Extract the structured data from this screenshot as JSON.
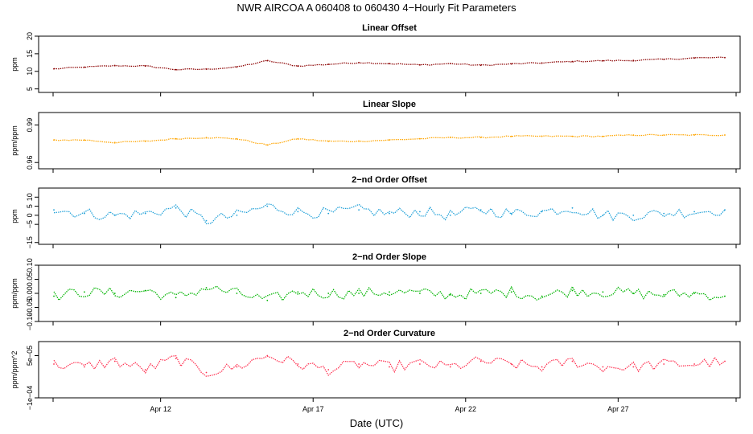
{
  "figure": {
    "title": "NWR   AIRCOA A   060408 to 060430   4−Hourly Fit Parameters",
    "xlabel": "Date (UTC)"
  },
  "chart_data": [
    {
      "type": "line",
      "title": "Linear Offset",
      "ylabel": "ppm",
      "ylim": [
        4,
        20
      ],
      "yticks": [
        5,
        10,
        15,
        20
      ],
      "ytick_labels": [
        "5",
        "10",
        "15",
        "20"
      ],
      "xlim": [
        "2006-04-08T00:00Z",
        "2006-05-01T00:00Z"
      ],
      "xticks": [
        "Apr 12",
        "Apr 17",
        "Apr 22",
        "Apr 27"
      ],
      "color": "#8b0000",
      "series": [
        {
          "x": [
            "2006-04-08T12Z",
            "2006-04-09T12Z",
            "2006-04-10T12Z",
            "2006-04-11T12Z",
            "2006-04-12T12Z",
            "2006-04-13T12Z",
            "2006-04-14T12Z",
            "2006-04-15T12Z",
            "2006-04-16T12Z",
            "2006-04-17T12Z",
            "2006-04-18T12Z",
            "2006-04-19T12Z",
            "2006-04-20T12Z",
            "2006-04-21T12Z",
            "2006-04-22T12Z",
            "2006-04-23T12Z",
            "2006-04-24T12Z",
            "2006-04-25T12Z",
            "2006-04-26T12Z",
            "2006-04-27T12Z",
            "2006-04-28T12Z",
            "2006-04-29T12Z",
            "2006-04-30T12Z"
          ],
          "values": [
            10.7,
            11.2,
            11.6,
            11.5,
            10.5,
            10.6,
            11.2,
            13.0,
            11.5,
            12.0,
            12.5,
            12.2,
            11.8,
            12.2,
            11.7,
            12.1,
            12.4,
            12.8,
            13.0,
            13.1,
            13.4,
            13.8,
            13.9
          ]
        }
      ]
    },
    {
      "type": "line",
      "title": "Linear Slope",
      "ylabel": "ppm/ppm",
      "ylim": [
        0.955,
        1.0
      ],
      "yticks": [
        0.96,
        0.99
      ],
      "ytick_labels": [
        "0.96",
        "0.99"
      ],
      "xlim": [
        "2006-04-08T00:00Z",
        "2006-05-01T00:00Z"
      ],
      "xticks": [
        "Apr 12",
        "Apr 17",
        "Apr 22",
        "Apr 27"
      ],
      "color": "#ffa500",
      "series": [
        {
          "x": [
            "2006-04-08T12Z",
            "2006-04-09T12Z",
            "2006-04-10T12Z",
            "2006-04-11T12Z",
            "2006-04-12T12Z",
            "2006-04-13T12Z",
            "2006-04-14T12Z",
            "2006-04-15T12Z",
            "2006-04-16T12Z",
            "2006-04-17T12Z",
            "2006-04-18T12Z",
            "2006-04-19T12Z",
            "2006-04-20T12Z",
            "2006-04-21T12Z",
            "2006-04-22T12Z",
            "2006-04-23T12Z",
            "2006-04-24T12Z",
            "2006-04-25T12Z",
            "2006-04-26T12Z",
            "2006-04-27T12Z",
            "2006-04-28T12Z",
            "2006-04-29T12Z",
            "2006-04-30T12Z"
          ],
          "values": [
            0.978,
            0.978,
            0.976,
            0.977,
            0.979,
            0.98,
            0.979,
            0.974,
            0.979,
            0.977,
            0.977,
            0.978,
            0.979,
            0.98,
            0.98,
            0.981,
            0.981,
            0.981,
            0.981,
            0.982,
            0.982,
            0.982,
            0.982
          ]
        }
      ]
    },
    {
      "type": "line",
      "title": "2−nd Order Offset",
      "ylabel": "ppm",
      "ylim": [
        -16,
        15
      ],
      "yticks": [
        -15,
        -5,
        0,
        5,
        10
      ],
      "ytick_labels": [
        "−15",
        "−5",
        "0",
        "5",
        "10"
      ],
      "xlim": [
        "2006-04-08T00:00Z",
        "2006-05-01T00:00Z"
      ],
      "xticks": [
        "Apr 12",
        "Apr 17",
        "Apr 22",
        "Apr 27"
      ],
      "color": "#1fa0d8",
      "series": [
        {
          "x": [
            "2006-04-08T12Z",
            "2006-04-09T12Z",
            "2006-04-10T12Z",
            "2006-04-11T12Z",
            "2006-04-12T12Z",
            "2006-04-13T12Z",
            "2006-04-14T12Z",
            "2006-04-15T12Z",
            "2006-04-16T12Z",
            "2006-04-17T12Z",
            "2006-04-18T12Z",
            "2006-04-19T12Z",
            "2006-04-20T12Z",
            "2006-04-21T12Z",
            "2006-04-22T12Z",
            "2006-04-23T12Z",
            "2006-04-24T12Z",
            "2006-04-25T12Z",
            "2006-04-26T12Z",
            "2006-04-27T12Z",
            "2006-04-28T12Z",
            "2006-04-29T12Z",
            "2006-04-30T12Z"
          ],
          "values": [
            3,
            1,
            0,
            1,
            4,
            -3,
            0,
            5,
            2,
            1,
            3,
            1,
            2,
            0,
            3,
            1,
            2,
            4,
            0,
            0,
            1,
            2,
            3
          ]
        }
      ]
    },
    {
      "type": "line",
      "title": "2−nd Order Slope",
      "ylabel": "ppm/ppm",
      "ylim": [
        -0.1,
        0.1
      ],
      "yticks": [
        -0.1,
        -0.05,
        0.0,
        0.05,
        0.1
      ],
      "ytick_labels": [
        "−0.10",
        "−0.05",
        "0.00",
        "0.05",
        "0.10"
      ],
      "xlim": [
        "2006-04-08T00:00Z",
        "2006-05-01T00:00Z"
      ],
      "xticks": [
        "Apr 12",
        "Apr 17",
        "Apr 22",
        "Apr 27"
      ],
      "color": "#00b400",
      "series": [
        {
          "x": [
            "2006-04-08T12Z",
            "2006-04-09T12Z",
            "2006-04-10T12Z",
            "2006-04-11T12Z",
            "2006-04-12T12Z",
            "2006-04-13T12Z",
            "2006-04-14T12Z",
            "2006-04-15T12Z",
            "2006-04-16T12Z",
            "2006-04-17T12Z",
            "2006-04-18T12Z",
            "2006-04-19T12Z",
            "2006-04-20T12Z",
            "2006-04-21T12Z",
            "2006-04-22T12Z",
            "2006-04-23T12Z",
            "2006-04-24T12Z",
            "2006-04-25T12Z",
            "2006-04-26T12Z",
            "2006-04-27T12Z",
            "2006-04-28T12Z",
            "2006-04-29T12Z",
            "2006-04-30T12Z"
          ],
          "values": [
            -0.01,
            0.005,
            0.0,
            0.01,
            -0.015,
            0.02,
            0.0,
            -0.025,
            0.005,
            0.0,
            0.0,
            0.005,
            0.0,
            -0.005,
            0.0,
            0.005,
            -0.01,
            0.01,
            0.005,
            0.0,
            -0.005,
            0.0,
            -0.01
          ]
        }
      ]
    },
    {
      "type": "line",
      "title": "2−nd Order Curvature",
      "ylabel": "ppm/ppm^2",
      "ylim": [
        -0.0001,
        0.0001
      ],
      "yticks": [
        -0.0001,
        5e-05
      ],
      "ytick_labels": [
        "−1e−04",
        "5e−05"
      ],
      "xlim": [
        "2006-04-08T00:00Z",
        "2006-05-01T00:00Z"
      ],
      "xticks": [
        "Apr 12",
        "Apr 17",
        "Apr 22",
        "Apr 27"
      ],
      "color": "#ff3050",
      "series": [
        {
          "x": [
            "2006-04-08T12Z",
            "2006-04-09T12Z",
            "2006-04-10T12Z",
            "2006-04-11T12Z",
            "2006-04-12T12Z",
            "2006-04-13T12Z",
            "2006-04-14T12Z",
            "2006-04-15T12Z",
            "2006-04-16T12Z",
            "2006-04-17T12Z",
            "2006-04-18T12Z",
            "2006-04-19T12Z",
            "2006-04-20T12Z",
            "2006-04-21T12Z",
            "2006-04-22T12Z",
            "2006-04-23T12Z",
            "2006-04-24T12Z",
            "2006-04-25T12Z",
            "2006-04-26T12Z",
            "2006-04-27T12Z",
            "2006-04-28T12Z",
            "2006-04-29T12Z",
            "2006-04-30T12Z"
          ],
          "values": [
            2e-05,
            1e-05,
            3e-05,
            0.0,
            4e-05,
            -1e-05,
            1e-05,
            5e-05,
            2e-05,
            0.0,
            2e-05,
            1e-05,
            2e-05,
            1e-05,
            3e-05,
            2e-05,
            1e-05,
            3e-05,
            1e-05,
            1e-05,
            2e-05,
            2e-05,
            3e-05
          ]
        }
      ]
    }
  ]
}
